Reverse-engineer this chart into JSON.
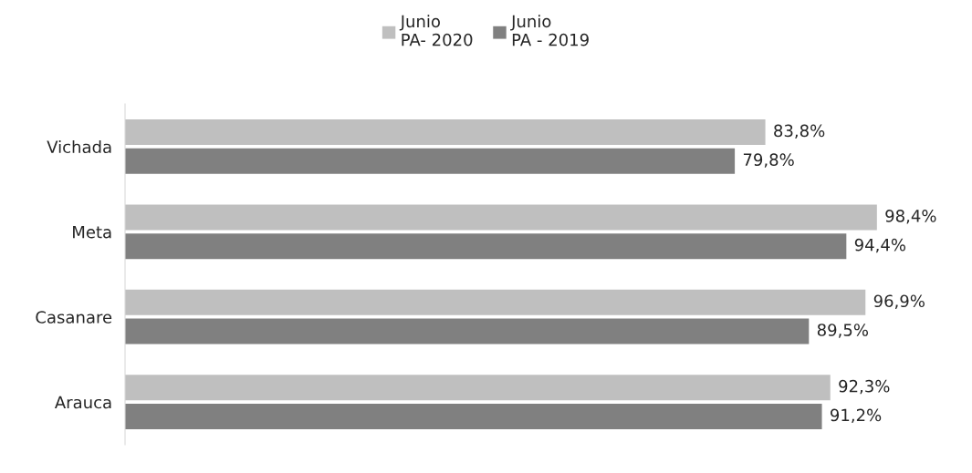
{
  "chart_data": {
    "type": "bar",
    "orientation": "horizontal",
    "categories": [
      "Vichada",
      "Meta",
      "Casanare",
      "Arauca"
    ],
    "series": [
      {
        "name": "Junio\nPA- 2020",
        "color": "#bfbfbf",
        "values": [
          83.8,
          98.4,
          96.9,
          92.3
        ],
        "value_labels": [
          "83,8%",
          "98,4%",
          "96,9%",
          "92,3%"
        ]
      },
      {
        "name": "Junio\nPA - 2019",
        "color": "#808080",
        "values": [
          79.8,
          94.4,
          89.5,
          91.2
        ],
        "value_labels": [
          "79,8%",
          "94,4%",
          "89,5%",
          "91,2%"
        ]
      }
    ],
    "tick_labels": "y",
    "grid": false,
    "legend": "top"
  }
}
